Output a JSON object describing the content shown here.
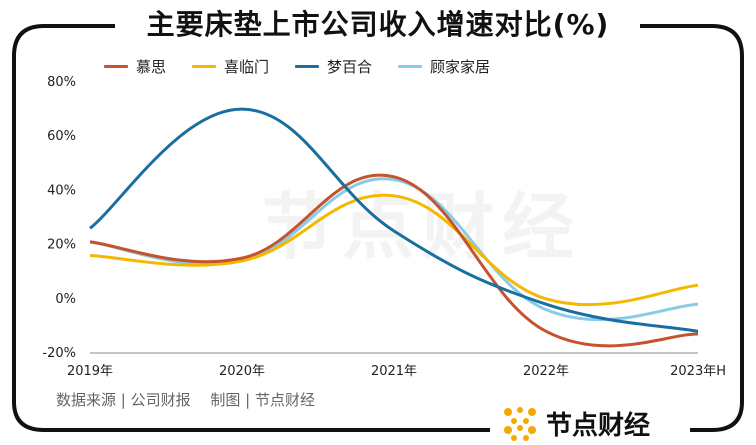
{
  "title": "主要床垫上市公司收入增速对比(%)",
  "source": "数据来源 | 公司财报　 制图 | 节点财经",
  "brand": {
    "name": "节点财经",
    "color": "#f2a900"
  },
  "watermark": "节点财经",
  "chart_data": {
    "type": "line",
    "title": "主要床垫上市公司收入增速对比(%)",
    "categories": [
      "2019年",
      "2020年",
      "2021年",
      "2022年",
      "2023年H"
    ],
    "y_unit": "%",
    "ylim": [
      -20,
      80
    ],
    "yticks": [
      "80%",
      "60%",
      "40%",
      "20%",
      "0%",
      "-20%"
    ],
    "ytick_values": [
      80,
      60,
      40,
      20,
      0,
      -20
    ],
    "legend_position": "top-left",
    "grid": false,
    "smooth": true,
    "series": [
      {
        "name": "慕思",
        "color": "#c5532e",
        "values": [
          21,
          15,
          45,
          -12,
          -13
        ]
      },
      {
        "name": "喜临门",
        "color": "#f5b800",
        "values": [
          16,
          14,
          38,
          0,
          5
        ]
      },
      {
        "name": "梦百合",
        "color": "#1a6ea0",
        "values": [
          26,
          70,
          25,
          -2,
          -12
        ]
      },
      {
        "name": "顾家家居",
        "color": "#87cbe6",
        "values": [
          21,
          14,
          44,
          -4,
          -2
        ]
      }
    ]
  }
}
